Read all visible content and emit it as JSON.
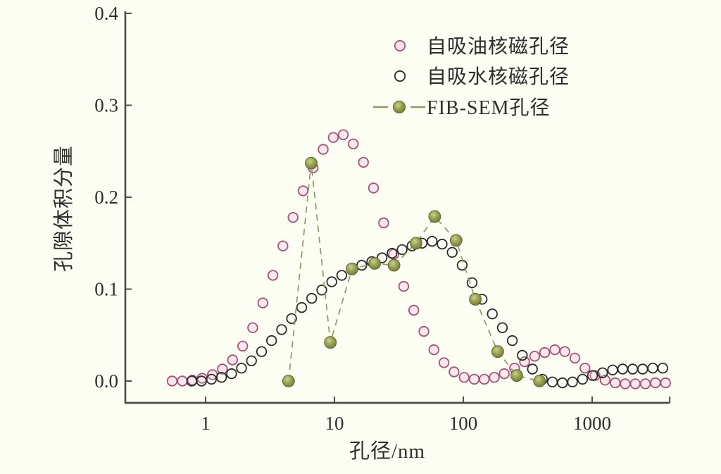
{
  "figure": {
    "background": "#fcfdf3",
    "axis_color": "#4c4c4c",
    "text_color": "#2e2e2e"
  },
  "axes": {
    "x": {
      "label": "孔径/nm",
      "scale": "log",
      "min": 0.24,
      "max": 4000,
      "ticks": [
        1,
        10,
        100,
        1000
      ],
      "tick_labels": [
        "1",
        "10",
        "100",
        "1000"
      ],
      "end_tick": 4000
    },
    "y": {
      "label": "孔隙体积分量",
      "min": -0.024,
      "max": 0.4,
      "ticks": [
        0.0,
        0.1,
        0.2,
        0.3,
        0.4
      ],
      "tick_labels": [
        "0.0",
        "0.1",
        "0.2",
        "0.3",
        "0.4"
      ]
    }
  },
  "legend": {
    "position": "upper-right-inside",
    "items": [
      {
        "label": "自吸油核磁孔径",
        "marker": "open-circle-icon",
        "color": "#a25377",
        "fill": "#f8dfe9"
      },
      {
        "label": "自吸水核磁孔径",
        "marker": "open-circle-icon",
        "color": "#2b2b2b",
        "fill": "none"
      },
      {
        "label": "FIB-SEM孔径",
        "marker": "dashed-filled-circle-icon",
        "color": "#7c8442",
        "line_color": "#8f9866"
      }
    ]
  },
  "chart_data": {
    "type": "scatter",
    "title": "",
    "xlabel": "孔径/nm",
    "ylabel": "孔隙体积分量",
    "x_scale": "log",
    "xlim": [
      0.24,
      4000
    ],
    "ylim": [
      -0.024,
      0.4
    ],
    "grid": false,
    "series": [
      {
        "name": "自吸油核磁孔径",
        "marker": "open-circle",
        "edge_color": "#a25377",
        "fill_color": "#f8dfe9",
        "points": [
          [
            0.55,
            0.0
          ],
          [
            0.66,
            0.0
          ],
          [
            0.79,
            0.001
          ],
          [
            0.94,
            0.003
          ],
          [
            1.13,
            0.007
          ],
          [
            1.35,
            0.013
          ],
          [
            1.62,
            0.023
          ],
          [
            1.94,
            0.038
          ],
          [
            2.32,
            0.058
          ],
          [
            2.78,
            0.085
          ],
          [
            3.33,
            0.115
          ],
          [
            3.98,
            0.147
          ],
          [
            4.77,
            0.178
          ],
          [
            5.71,
            0.207
          ],
          [
            6.83,
            0.232
          ],
          [
            8.18,
            0.252
          ],
          [
            9.8,
            0.265
          ],
          [
            11.7,
            0.268
          ],
          [
            14.0,
            0.258
          ],
          [
            16.8,
            0.238
          ],
          [
            20.1,
            0.21
          ],
          [
            24.1,
            0.172
          ],
          [
            28.8,
            0.138
          ],
          [
            34.5,
            0.103
          ],
          [
            41.3,
            0.077
          ],
          [
            49.4,
            0.054
          ],
          [
            59.2,
            0.034
          ],
          [
            70.8,
            0.02
          ],
          [
            84.8,
            0.01
          ],
          [
            101.5,
            0.004
          ],
          [
            121.5,
            0.002
          ],
          [
            145.5,
            0.002
          ],
          [
            174,
            0.004
          ],
          [
            208,
            0.008
          ],
          [
            250,
            0.014
          ],
          [
            299,
            0.021
          ],
          [
            358,
            0.027
          ],
          [
            428,
            0.031
          ],
          [
            513,
            0.034
          ],
          [
            614,
            0.032
          ],
          [
            735,
            0.025
          ],
          [
            880,
            0.014
          ],
          [
            1053,
            0.006
          ],
          [
            1261,
            0.001
          ],
          [
            1510,
            -0.002
          ],
          [
            1807,
            -0.003
          ],
          [
            2163,
            -0.003
          ],
          [
            2590,
            -0.003
          ],
          [
            3100,
            -0.002
          ],
          [
            3711,
            -0.002
          ]
        ]
      },
      {
        "name": "自吸水核磁孔径",
        "marker": "open-circle",
        "edge_color": "#2b2b2b",
        "fill_color": "none",
        "points": [
          [
            0.78,
            0.0
          ],
          [
            0.93,
            0.0
          ],
          [
            1.11,
            0.002
          ],
          [
            1.33,
            0.004
          ],
          [
            1.59,
            0.008
          ],
          [
            1.9,
            0.014
          ],
          [
            2.27,
            0.022
          ],
          [
            2.72,
            0.032
          ],
          [
            3.25,
            0.044
          ],
          [
            3.89,
            0.056
          ],
          [
            4.65,
            0.068
          ],
          [
            5.57,
            0.08
          ],
          [
            6.66,
            0.09
          ],
          [
            7.97,
            0.099
          ],
          [
            9.53,
            0.108
          ],
          [
            11.4,
            0.115
          ],
          [
            13.6,
            0.121
          ],
          [
            16.3,
            0.126
          ],
          [
            19.5,
            0.13
          ],
          [
            23.4,
            0.134
          ],
          [
            28.0,
            0.139
          ],
          [
            33.5,
            0.143
          ],
          [
            40,
            0.147
          ],
          [
            47.9,
            0.15
          ],
          [
            57.3,
            0.152
          ],
          [
            68.5,
            0.149
          ],
          [
            82,
            0.14
          ],
          [
            98,
            0.126
          ],
          [
            117,
            0.107
          ],
          [
            140,
            0.089
          ],
          [
            168,
            0.073
          ],
          [
            201,
            0.058
          ],
          [
            240,
            0.044
          ],
          [
            287,
            0.028
          ],
          [
            344,
            0.013
          ],
          [
            411,
            0.002
          ],
          [
            492,
            -0.001
          ],
          [
            588,
            -0.002
          ],
          [
            704,
            -0.001
          ],
          [
            842,
            0.002
          ],
          [
            1007,
            0.006
          ],
          [
            1205,
            0.009
          ],
          [
            1442,
            0.012
          ],
          [
            1725,
            0.013
          ],
          [
            2063,
            0.013
          ],
          [
            2468,
            0.013
          ],
          [
            2953,
            0.014
          ],
          [
            3533,
            0.014
          ]
        ]
      },
      {
        "name": "FIB-SEM孔径",
        "marker": "filled-circle",
        "line_style": "dashed",
        "edge_color": "#5e6530",
        "fill_color": "#99a151",
        "line_color": "#8f9866",
        "points": [
          [
            4.4,
            0.0
          ],
          [
            6.6,
            0.237
          ],
          [
            9.3,
            0.042
          ],
          [
            13.7,
            0.122
          ],
          [
            20.5,
            0.128
          ],
          [
            29,
            0.126
          ],
          [
            43,
            0.15
          ],
          [
            60,
            0.179
          ],
          [
            88,
            0.153
          ],
          [
            124,
            0.089
          ],
          [
            185,
            0.032
          ],
          [
            260,
            0.006
          ],
          [
            390,
            0.0
          ]
        ]
      }
    ]
  }
}
